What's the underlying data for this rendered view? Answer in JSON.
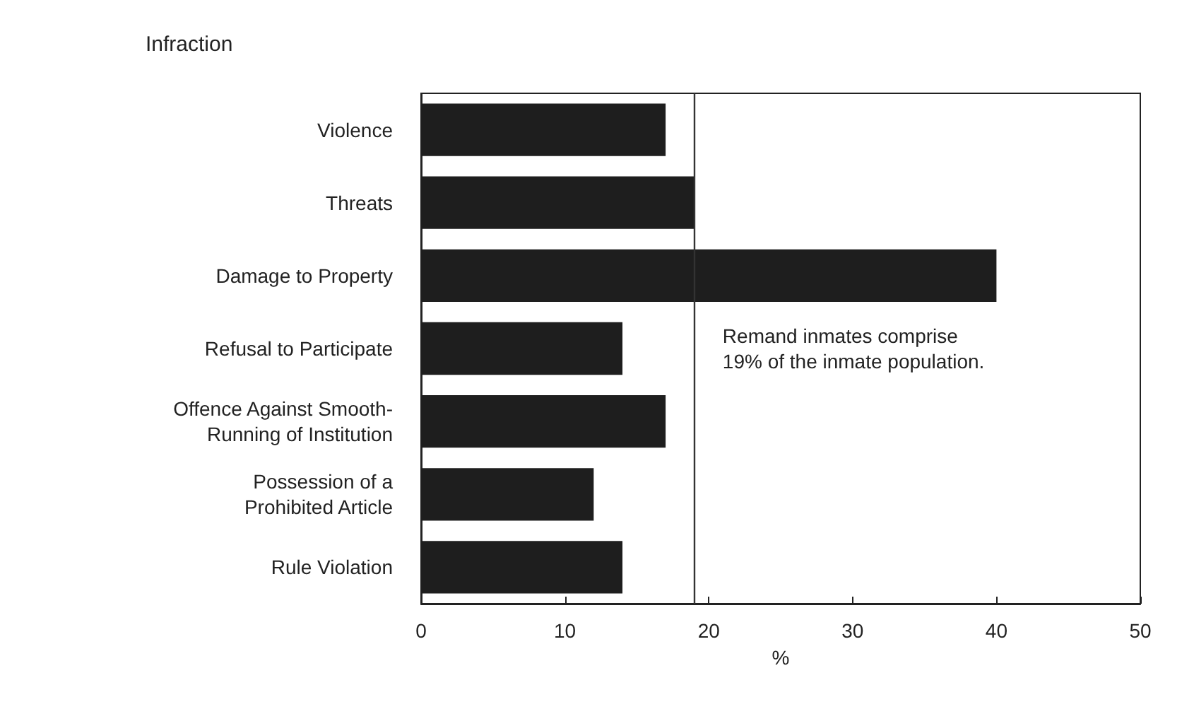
{
  "chart_data": {
    "type": "bar",
    "orientation": "horizontal",
    "ylabel": "Infraction",
    "xlabel": "%",
    "categories": [
      "Violence",
      "Threats",
      "Damage to Property",
      "Refusal to Participate",
      "Offence Against Smooth-\nRunning of Institution",
      "Possession of a\nProhibited Article",
      "Rule Violation"
    ],
    "values": [
      17,
      19,
      40,
      14,
      17,
      12,
      14
    ],
    "color": "#1e1e1e",
    "xlim": [
      0,
      50
    ],
    "xticks": [
      0,
      10,
      20,
      30,
      40,
      50
    ],
    "grid": false,
    "ref_lines": [
      {
        "axis": "x",
        "value": 19,
        "label": "Remand inmates comprise\n19% of the inmate population.",
        "color": "#333333"
      }
    ]
  }
}
